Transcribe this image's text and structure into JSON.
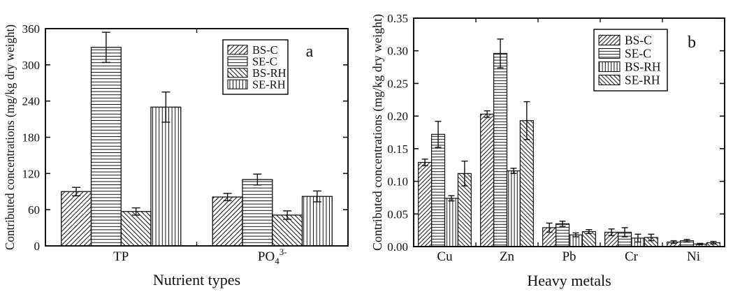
{
  "figure": {
    "background": "#ffffff",
    "ink_color": "#111111"
  },
  "chart_data": [
    {
      "type": "bar",
      "panel_label": "a",
      "xlabel": "Nutrient types",
      "ylabel": "Contributed concentrations (mg/kg dry weight)",
      "ylim": [
        0,
        360
      ],
      "ytick_labels": [
        "0",
        "60",
        "120",
        "180",
        "240",
        "300",
        "360"
      ],
      "grid": false,
      "legend_position": "top-right-inside",
      "categories": [
        {
          "label": "TP"
        },
        {
          "label": "PO",
          "sub": "4",
          "sup": "3-"
        }
      ],
      "series": [
        {
          "name": "BS-C",
          "hatch": "diagonal-up",
          "values": [
            90,
            81
          ],
          "errors": [
            7,
            6
          ]
        },
        {
          "name": "SE-C",
          "hatch": "horizontal",
          "values": [
            329,
            110
          ],
          "errors": [
            25,
            9
          ]
        },
        {
          "name": "BS-RH",
          "hatch": "diagonal-down",
          "values": [
            57,
            51
          ],
          "errors": [
            6,
            7
          ]
        },
        {
          "name": "SE-RH",
          "hatch": "vertical",
          "values": [
            230,
            82
          ],
          "errors": [
            25,
            9
          ]
        }
      ]
    },
    {
      "type": "bar",
      "panel_label": "b",
      "xlabel": "Heavy metals",
      "ylabel": "Contributed concentrations (mg/kg dry weight)",
      "ylim": [
        0,
        0.35
      ],
      "ytick_labels": [
        "0.00",
        "0.05",
        "0.10",
        "0.15",
        "0.20",
        "0.25",
        "0.30",
        "0.35"
      ],
      "grid": false,
      "legend_position": "top-right-inside",
      "categories": [
        {
          "label": "Cu"
        },
        {
          "label": "Zn"
        },
        {
          "label": "Pb"
        },
        {
          "label": "Cr"
        },
        {
          "label": "Ni"
        }
      ],
      "series": [
        {
          "name": "BS-C",
          "hatch": "diagonal-up",
          "values": [
            0.129,
            0.203,
            0.029,
            0.022,
            0.007
          ],
          "errors": [
            0.005,
            0.005,
            0.007,
            0.005,
            0.002
          ]
        },
        {
          "name": "SE-C",
          "hatch": "horizontal",
          "values": [
            0.172,
            0.296,
            0.035,
            0.022,
            0.009
          ],
          "errors": [
            0.02,
            0.022,
            0.004,
            0.007,
            0.002
          ]
        },
        {
          "name": "BS-RH",
          "hatch": "vertical",
          "values": [
            0.074,
            0.116,
            0.018,
            0.013,
            0.004
          ],
          "errors": [
            0.004,
            0.004,
            0.003,
            0.006,
            0.001
          ]
        },
        {
          "name": "SE-RH",
          "hatch": "diagonal-down",
          "values": [
            0.112,
            0.193,
            0.023,
            0.014,
            0.006
          ],
          "errors": [
            0.019,
            0.029,
            0.003,
            0.005,
            0.002
          ]
        }
      ]
    }
  ]
}
